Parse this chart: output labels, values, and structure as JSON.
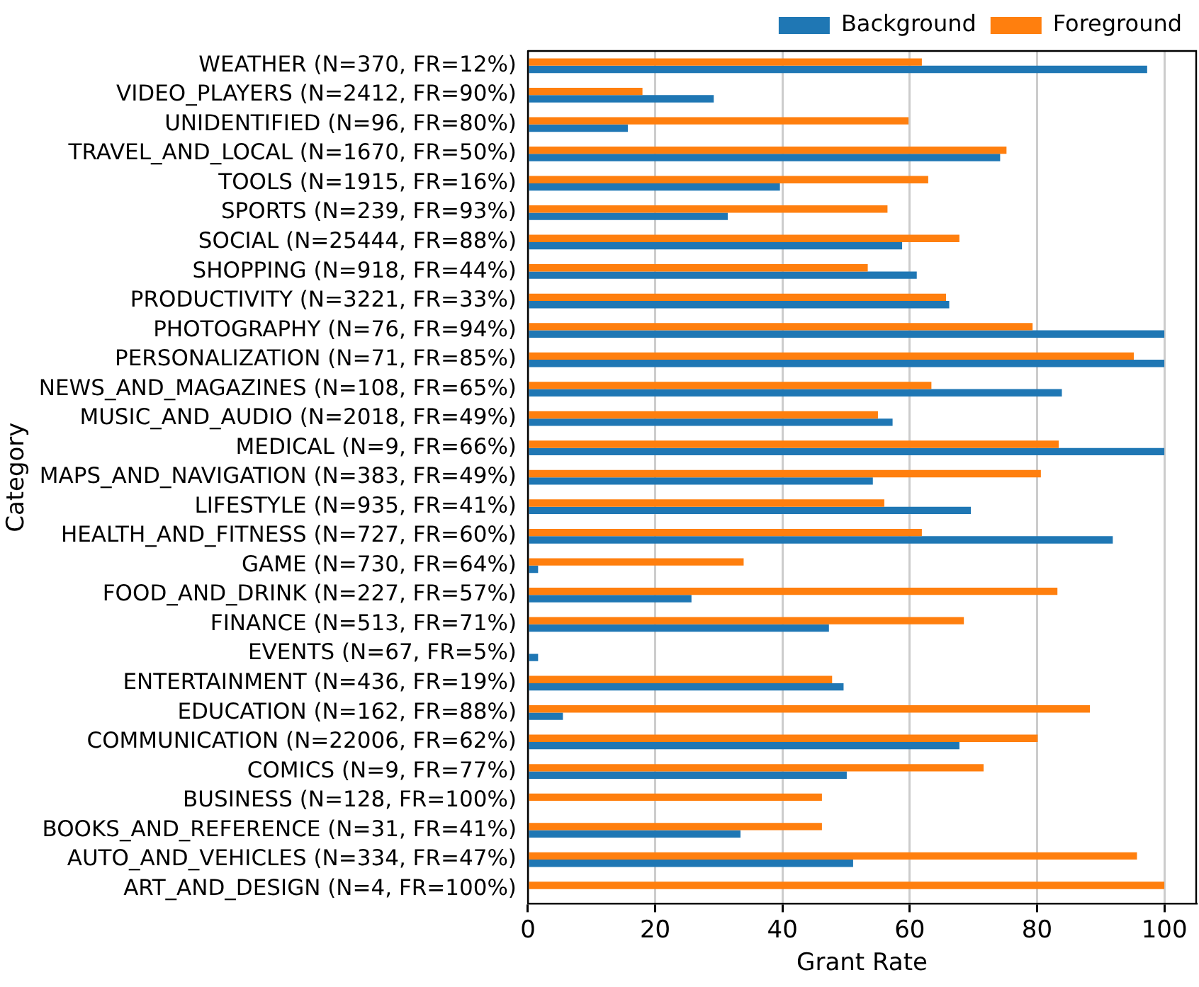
{
  "chart_data": {
    "type": "bar",
    "orientation": "horizontal",
    "xlabel": "Grant Rate",
    "ylabel": "Category",
    "categories": [
      "WEATHER (N=370, FR=12%)",
      "VIDEO_PLAYERS (N=2412, FR=90%)",
      "UNIDENTIFIED (N=96, FR=80%)",
      "TRAVEL_AND_LOCAL (N=1670, FR=50%)",
      "TOOLS (N=1915, FR=16%)",
      "SPORTS (N=239, FR=93%)",
      "SOCIAL (N=25444, FR=88%)",
      "SHOPPING (N=918, FR=44%)",
      "PRODUCTIVITY (N=3221, FR=33%)",
      "PHOTOGRAPHY (N=76, FR=94%)",
      "PERSONALIZATION (N=71, FR=85%)",
      "NEWS_AND_MAGAZINES (N=108, FR=65%)",
      "MUSIC_AND_AUDIO (N=2018, FR=49%)",
      "MEDICAL (N=9, FR=66%)",
      "MAPS_AND_NAVIGATION (N=383, FR=49%)",
      "LIFESTYLE (N=935, FR=41%)",
      "HEALTH_AND_FITNESS (N=727, FR=60%)",
      "GAME (N=730, FR=64%)",
      "FOOD_AND_DRINK (N=227, FR=57%)",
      "FINANCE (N=513, FR=71%)",
      "EVENTS (N=67, FR=5%)",
      "ENTERTAINMENT (N=436, FR=19%)",
      "EDUCATION (N=162, FR=88%)",
      "COMMUNICATION (N=22006, FR=62%)",
      "COMICS (N=9, FR=77%)",
      "BUSINESS (N=128, FR=100%)",
      "BOOKS_AND_REFERENCE (N=31, FR=41%)",
      "AUTO_AND_VEHICLES (N=334, FR=47%)",
      "ART_AND_DESIGN (N=4, FR=100%)"
    ],
    "series": [
      {
        "name": "Background",
        "color": "#1f77b4",
        "values": [
          97.3,
          29.2,
          15.7,
          74.2,
          39.6,
          31.4,
          58.8,
          61.1,
          66.2,
          100,
          100,
          83.9,
          57.3,
          100,
          54.2,
          69.6,
          91.9,
          1.6,
          25.7,
          47.3,
          1.6,
          49.6,
          5.5,
          67.8,
          50.1,
          0,
          33.4,
          51.1,
          0
        ]
      },
      {
        "name": "Foreground",
        "color": "#ff7f0e",
        "values": [
          61.9,
          18.0,
          59.8,
          75.2,
          62.9,
          56.5,
          67.8,
          53.4,
          65.7,
          79.3,
          95.2,
          63.4,
          55.0,
          83.4,
          80.6,
          56.0,
          61.9,
          33.9,
          83.2,
          68.5,
          0,
          47.8,
          88.3,
          80.1,
          71.6,
          46.2,
          46.2,
          95.7,
          100
        ]
      }
    ],
    "xlim": [
      0,
      105
    ],
    "xticks": [
      0,
      20,
      40,
      60,
      80,
      100
    ],
    "grid": "x",
    "legend": "top right"
  }
}
